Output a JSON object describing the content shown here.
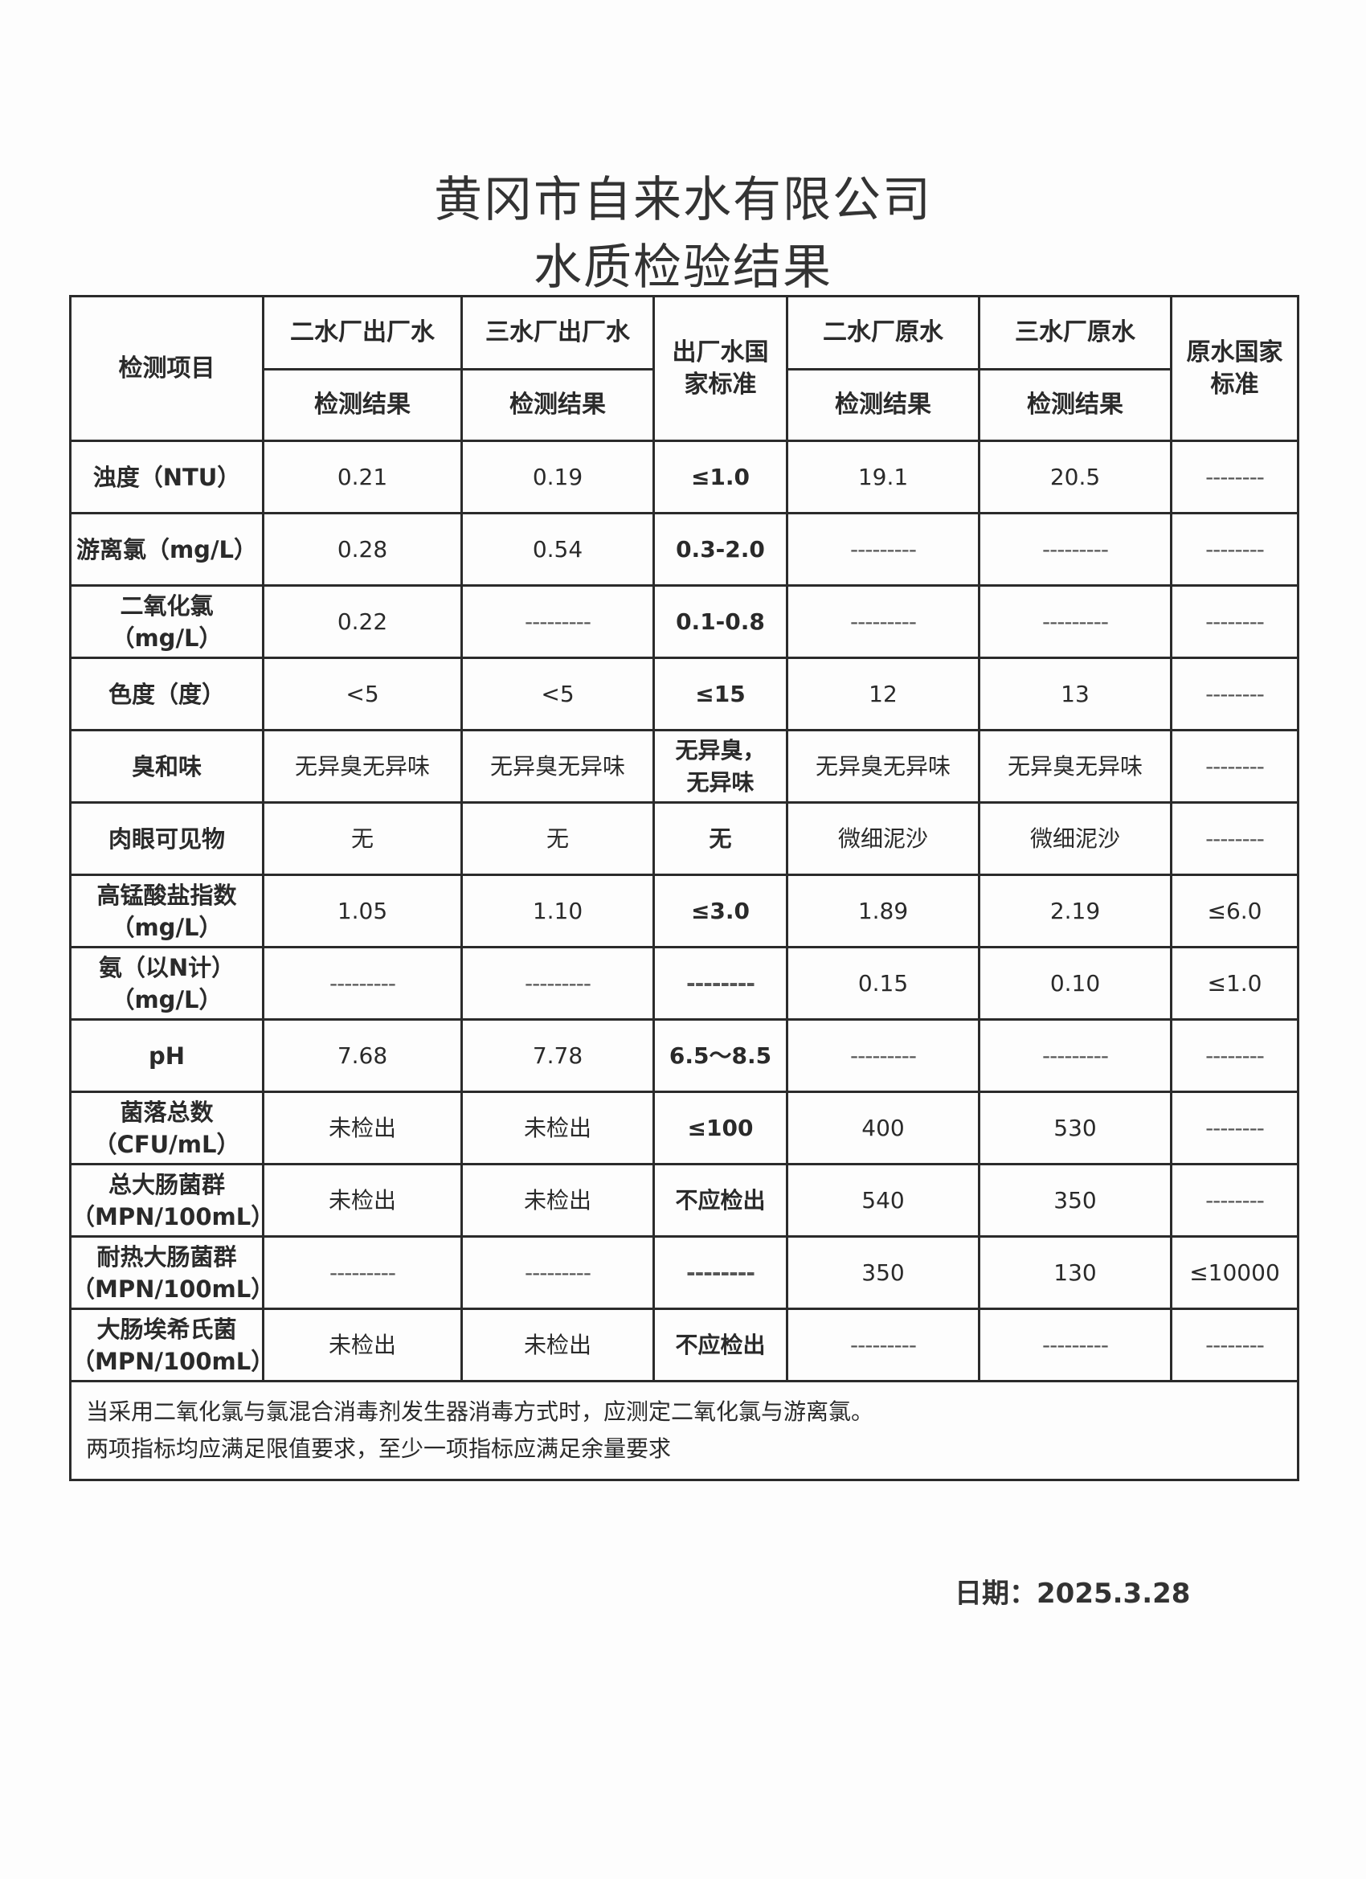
{
  "title": "黄冈市自来水有限公司",
  "subtitle": "水质检验结果",
  "table": {
    "item_header": "检测项目",
    "groups": [
      "二水厂出厂水",
      "三水厂出厂水",
      "出厂水国家标准",
      "二水厂原水",
      "三水厂原水",
      "原水国家标准"
    ],
    "sub_header": "检测结果",
    "rows": [
      {
        "item": "浊度（NTU）",
        "values": [
          "0.21",
          "0.19",
          "≤1.0",
          "19.1",
          "20.5",
          "--------"
        ]
      },
      {
        "item": "游离氯（mg/L）",
        "values": [
          "0.28",
          "0.54",
          "0.3-2.0",
          "---------",
          "---------",
          "--------"
        ]
      },
      {
        "item": "二氧化氯（mg/L）",
        "values": [
          "0.22",
          "---------",
          "0.1-0.8",
          "---------",
          "---------",
          "--------"
        ]
      },
      {
        "item": "色度（度）",
        "values": [
          "<5",
          "<5",
          "≤15",
          "12",
          "13",
          "--------"
        ]
      },
      {
        "item": "臭和味",
        "values": [
          "无异臭无异味",
          "无异臭无异味",
          "无异臭，无异味",
          "无异臭无异味",
          "无异臭无异味",
          "--------"
        ]
      },
      {
        "item": "肉眼可见物",
        "values": [
          "无",
          "无",
          "无",
          "微细泥沙",
          "微细泥沙",
          "--------"
        ]
      },
      {
        "item": "高锰酸盐指数（mg/L）",
        "values": [
          "1.05",
          "1.10",
          "≤3.0",
          "1.89",
          "2.19",
          "≤6.0"
        ]
      },
      {
        "item": "氨（以N计）（mg/L）",
        "values": [
          "---------",
          "---------",
          "--------",
          "0.15",
          "0.10",
          "≤1.0"
        ]
      },
      {
        "item": "pH",
        "values": [
          "7.68",
          "7.78",
          "6.5～8.5",
          "---------",
          "---------",
          "--------"
        ]
      },
      {
        "item": "菌落总数（CFU/mL）",
        "values": [
          "未检出",
          "未检出",
          "≤100",
          "400",
          "530",
          "--------"
        ]
      },
      {
        "item": "总大肠菌群（MPN/100mL）",
        "values": [
          "未检出",
          "未检出",
          "不应检出",
          "540",
          "350",
          "--------"
        ]
      },
      {
        "item": "耐热大肠菌群（MPN/100mL）",
        "values": [
          "---------",
          "---------",
          "--------",
          "350",
          "130",
          "≤10000"
        ]
      },
      {
        "item": "大肠埃希氏菌（MPN/100mL）",
        "values": [
          "未检出",
          "未检出",
          "不应检出",
          "---------",
          "---------",
          "--------"
        ]
      }
    ],
    "note_lines": [
      "当采用二氧化氯与氯混合消毒剂发生器消毒方式时，应测定二氧化氯与游离氯。",
      "两项指标均应满足限值要求，至少一项指标应满足余量要求"
    ]
  },
  "date": "日期：2025.3.28"
}
